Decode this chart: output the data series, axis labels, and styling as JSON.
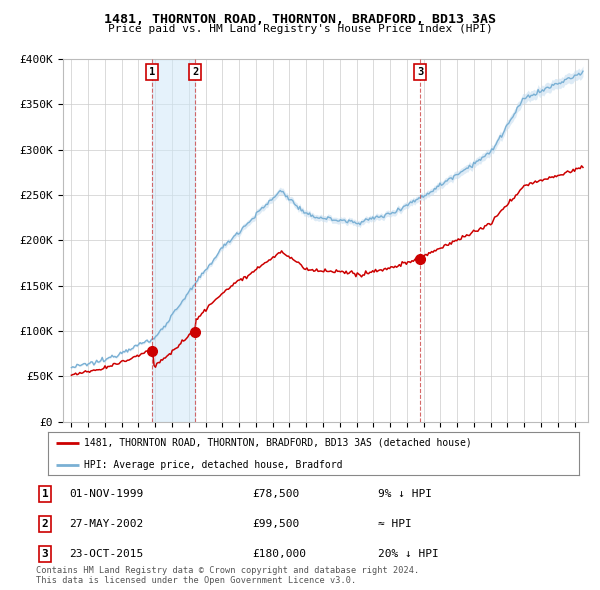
{
  "title": "1481, THORNTON ROAD, THORNTON, BRADFORD, BD13 3AS",
  "subtitle": "Price paid vs. HM Land Registry's House Price Index (HPI)",
  "ylim": [
    0,
    400000
  ],
  "yticks": [
    0,
    50000,
    100000,
    150000,
    200000,
    250000,
    300000,
    350000,
    400000
  ],
  "ytick_labels": [
    "£0",
    "£50K",
    "£100K",
    "£150K",
    "£200K",
    "£250K",
    "£300K",
    "£350K",
    "£400K"
  ],
  "xlim_start": 1994.5,
  "xlim_end": 2025.8,
  "sales": [
    {
      "year": 1999.83,
      "price": 78500,
      "label": "1",
      "date": "01-NOV-1999",
      "price_str": "£78,500",
      "hpi_note": "9% ↓ HPI"
    },
    {
      "year": 2002.37,
      "price": 99500,
      "label": "2",
      "date": "27-MAY-2002",
      "price_str": "£99,500",
      "hpi_note": "≈ HPI"
    },
    {
      "year": 2015.8,
      "price": 180000,
      "label": "3",
      "date": "23-OCT-2015",
      "price_str": "£180,000",
      "hpi_note": "20% ↓ HPI"
    }
  ],
  "red_line_color": "#cc0000",
  "blue_line_color": "#7ab0d4",
  "blue_fill_color": "#c8dff0",
  "sale_dot_color": "#cc0000",
  "legend_label_red": "1481, THORNTON ROAD, THORNTON, BRADFORD, BD13 3AS (detached house)",
  "legend_label_blue": "HPI: Average price, detached house, Bradford",
  "footer1": "Contains HM Land Registry data © Crown copyright and database right 2024.",
  "footer2": "This data is licensed under the Open Government Licence v3.0.",
  "background_color": "#ffffff",
  "plot_bg_color": "#ffffff",
  "grid_color": "#cccccc"
}
